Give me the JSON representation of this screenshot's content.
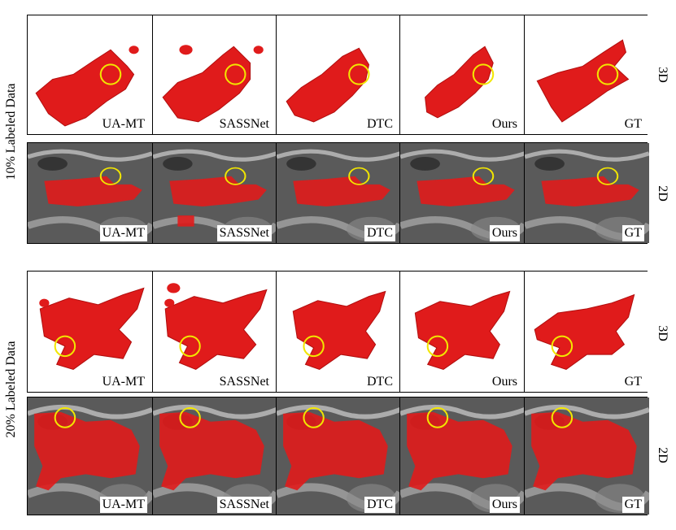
{
  "figure": {
    "groups": [
      {
        "label": "10% Labeled Data",
        "rows": [
          {
            "type": "3D",
            "label": "3D"
          },
          {
            "type": "2D",
            "label": "2D"
          }
        ]
      },
      {
        "label": "20% Labeled Data",
        "rows": [
          {
            "type": "3D",
            "label": "3D"
          },
          {
            "type": "2D",
            "label": "2D"
          }
        ]
      }
    ],
    "methods": [
      "UA-MT",
      "SASSNet",
      "DTC",
      "Ours",
      "GT"
    ],
    "colors": {
      "segmentation": "#e01b1b",
      "highlight_circle": "#f2e600",
      "mri_background": "#5a5a5a"
    }
  }
}
